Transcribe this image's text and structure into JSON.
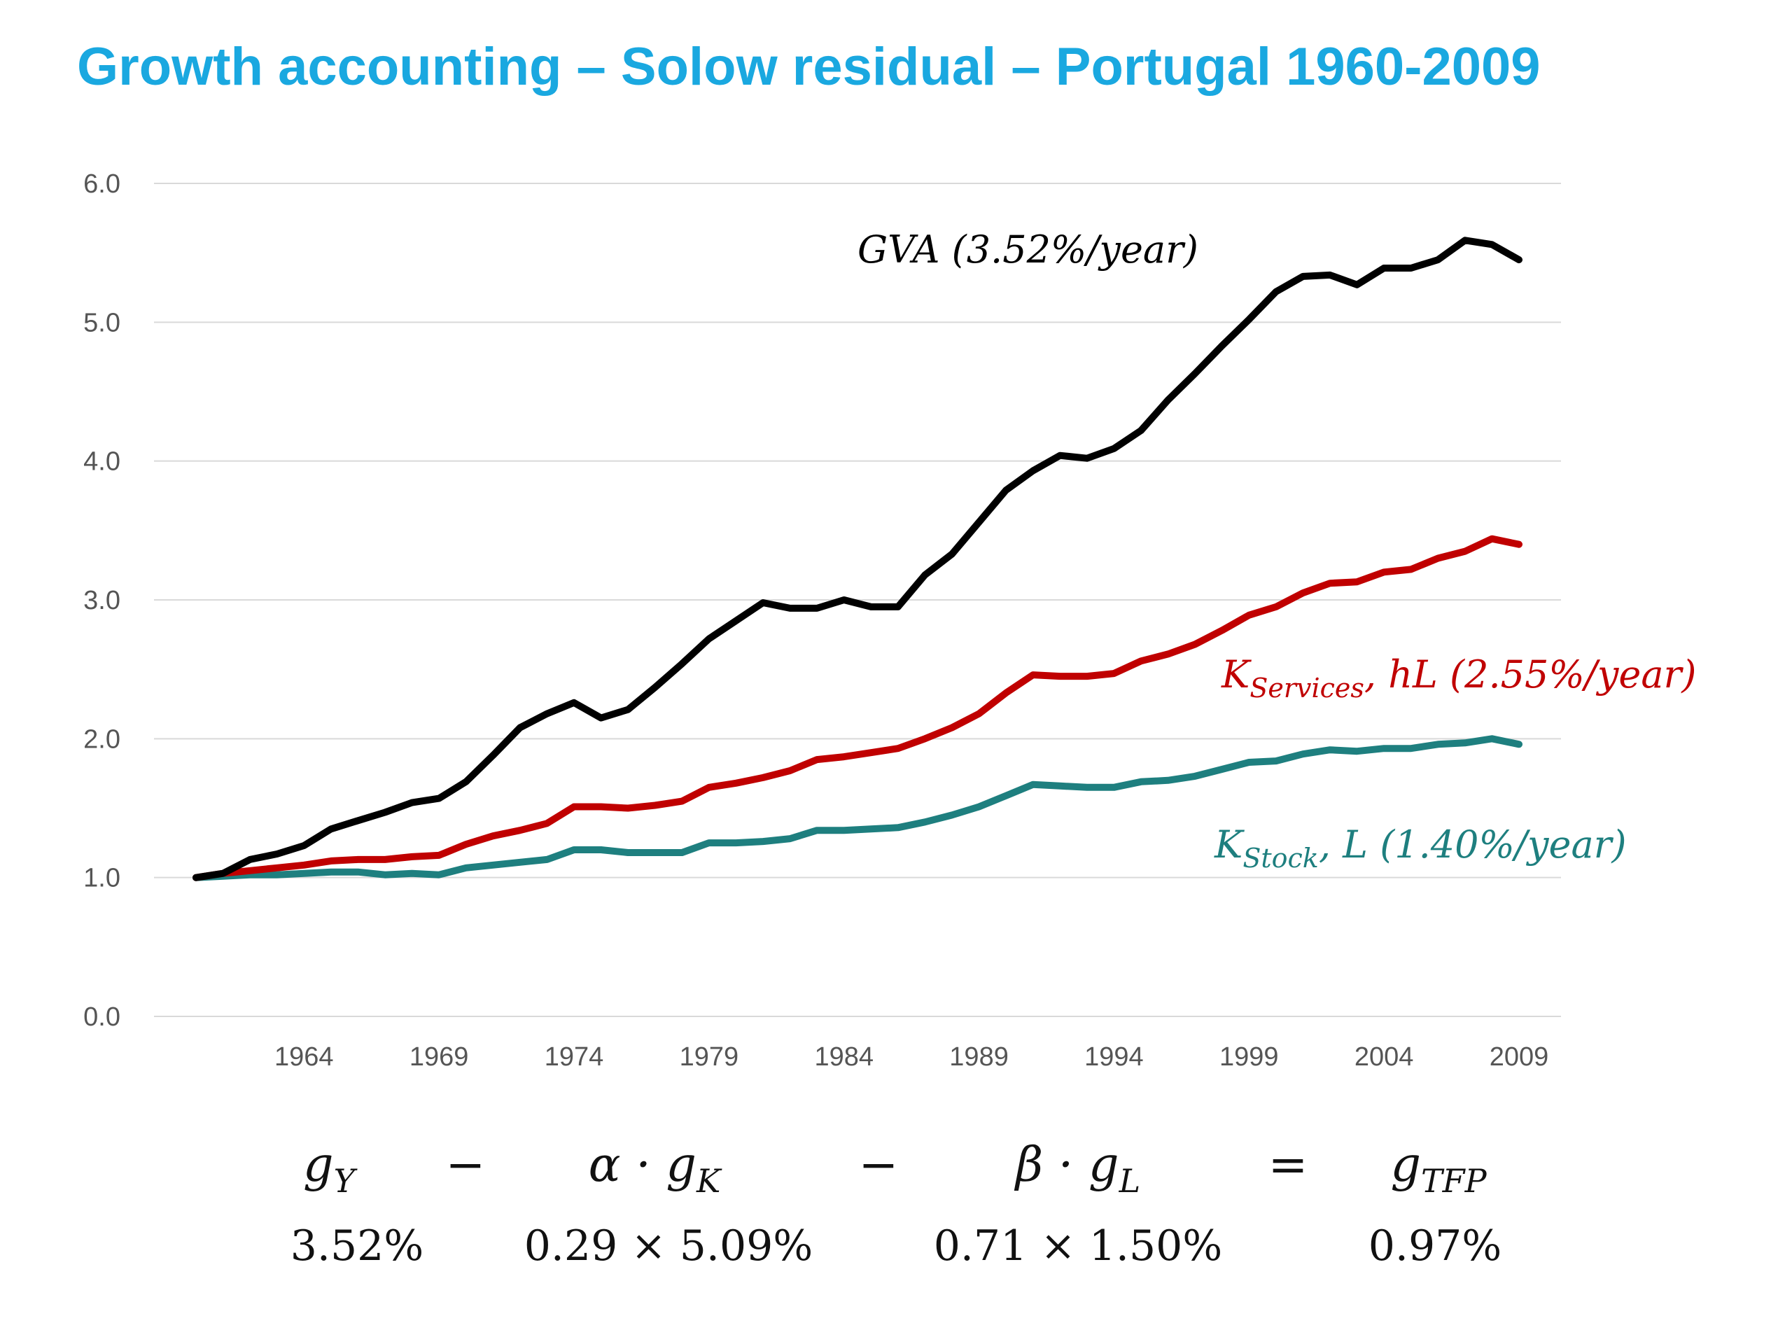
{
  "title": "Growth accounting – Solow residual – Portugal 1960-2009",
  "chart_data": {
    "type": "line",
    "title": "Growth accounting – Solow residual – Portugal 1960-2009",
    "xlabel": "",
    "ylabel": "",
    "ylim": [
      0,
      6
    ],
    "yticks": [
      "0.0",
      "1.0",
      "2.0",
      "3.0",
      "4.0",
      "5.0",
      "6.0"
    ],
    "xtick_labels": [
      "1964",
      "1969",
      "1974",
      "1979",
      "1984",
      "1989",
      "1994",
      "1999",
      "2004",
      "2009"
    ],
    "grid": true,
    "x": [
      1960,
      1961,
      1962,
      1963,
      1964,
      1965,
      1966,
      1967,
      1968,
      1969,
      1970,
      1971,
      1972,
      1973,
      1974,
      1975,
      1976,
      1977,
      1978,
      1979,
      1980,
      1981,
      1982,
      1983,
      1984,
      1985,
      1986,
      1987,
      1988,
      1989,
      1990,
      1991,
      1992,
      1993,
      1994,
      1995,
      1996,
      1997,
      1998,
      1999,
      2000,
      2001,
      2002,
      2003,
      2004,
      2005,
      2006,
      2007,
      2008,
      2009
    ],
    "series": [
      {
        "name": "GVA (3.52%/year)",
        "color": "#000000",
        "values": [
          1.0,
          1.03,
          1.13,
          1.17,
          1.23,
          1.35,
          1.41,
          1.47,
          1.54,
          1.57,
          1.69,
          1.88,
          2.08,
          2.18,
          2.26,
          2.15,
          2.21,
          2.37,
          2.54,
          2.72,
          2.85,
          2.98,
          2.94,
          2.94,
          3.0,
          2.95,
          2.95,
          3.18,
          3.33,
          3.56,
          3.79,
          3.93,
          4.04,
          4.02,
          4.09,
          4.22,
          4.44,
          4.63,
          4.83,
          5.02,
          5.22,
          5.33,
          5.34,
          5.27,
          5.39,
          5.39,
          5.45,
          5.59,
          5.56,
          5.45
        ]
      },
      {
        "name": "K_Services, hL (2.55%/year)",
        "label_main": "K",
        "label_sub": "Services",
        "label_rest": ", hL (2.55%/year)",
        "color": "#c00000",
        "values": [
          1.0,
          1.03,
          1.05,
          1.07,
          1.09,
          1.12,
          1.13,
          1.13,
          1.15,
          1.16,
          1.24,
          1.3,
          1.34,
          1.39,
          1.51,
          1.51,
          1.5,
          1.52,
          1.55,
          1.65,
          1.68,
          1.72,
          1.77,
          1.85,
          1.87,
          1.9,
          1.93,
          2.0,
          2.08,
          2.18,
          2.33,
          2.46,
          2.45,
          2.45,
          2.47,
          2.56,
          2.61,
          2.68,
          2.78,
          2.89,
          2.95,
          3.05,
          3.12,
          3.13,
          3.2,
          3.22,
          3.3,
          3.35,
          3.44,
          3.4
        ]
      },
      {
        "name": "K_Stock, L (1.40%/year)",
        "label_main": "K",
        "label_sub": "Stock",
        "label_rest": ", L (1.40%/year)",
        "color": "#1e7f7f",
        "values": [
          1.0,
          1.01,
          1.02,
          1.02,
          1.03,
          1.04,
          1.04,
          1.02,
          1.03,
          1.02,
          1.07,
          1.09,
          1.11,
          1.13,
          1.2,
          1.2,
          1.18,
          1.18,
          1.18,
          1.25,
          1.25,
          1.26,
          1.28,
          1.34,
          1.34,
          1.35,
          1.36,
          1.4,
          1.45,
          1.51,
          1.59,
          1.67,
          1.66,
          1.65,
          1.65,
          1.69,
          1.7,
          1.73,
          1.78,
          1.83,
          1.84,
          1.89,
          1.92,
          1.91,
          1.93,
          1.93,
          1.96,
          1.97,
          2.0,
          1.96
        ]
      }
    ]
  },
  "equation": {
    "symbols": [
      {
        "main": "g",
        "sub": "Y"
      },
      {
        "op": "−"
      },
      {
        "main": "α · g",
        "sub": "K"
      },
      {
        "op": "−"
      },
      {
        "main": "β · g",
        "sub": "L"
      },
      {
        "op": "="
      },
      {
        "main": "g",
        "sub": "TFP"
      }
    ],
    "values": [
      "3.52%",
      "0.29 × 5.09%",
      "0.71 × 1.50%",
      "0.97%"
    ]
  }
}
